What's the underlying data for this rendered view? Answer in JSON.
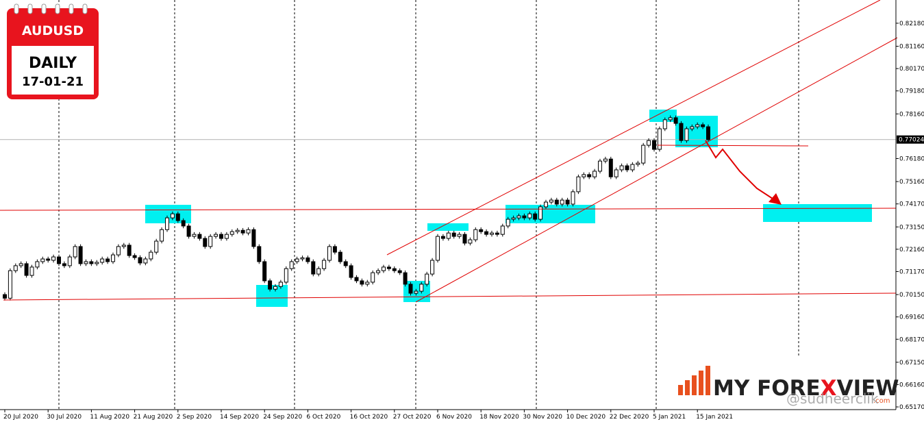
{
  "header": {
    "symbol": "AUDUSD",
    "timeframe": "DAILY",
    "date": "17-01-21"
  },
  "logo": {
    "parts": [
      "MY FORE",
      "X",
      "VIEW"
    ],
    "suffix": ".com"
  },
  "watermark": "@sudheerclik",
  "chart_data": {
    "type": "candlestick",
    "categories": [
      "20 Jul 2020",
      null,
      null,
      null,
      null,
      null,
      null,
      null,
      "30 Jul 2020",
      null,
      null,
      null,
      null,
      null,
      null,
      null,
      "11 Aug 2020",
      null,
      null,
      null,
      null,
      null,
      null,
      null,
      "21 Aug 2020",
      null,
      null,
      null,
      null,
      null,
      null,
      null,
      "2 Sep 2020",
      null,
      null,
      null,
      null,
      null,
      null,
      null,
      "14 Sep 2020",
      null,
      null,
      null,
      null,
      null,
      null,
      null,
      "24 Sep 2020",
      null,
      null,
      null,
      null,
      null,
      null,
      null,
      "6 Oct 2020",
      null,
      null,
      null,
      null,
      null,
      null,
      null,
      "16 Oct 2020",
      null,
      null,
      null,
      null,
      null,
      null,
      null,
      "27 Oct 2020",
      null,
      null,
      null,
      null,
      null,
      null,
      null,
      "6 Nov 2020",
      null,
      null,
      null,
      null,
      null,
      null,
      null,
      "18 Nov 2020",
      null,
      null,
      null,
      null,
      null,
      null,
      null,
      "30 Nov 2020",
      null,
      null,
      null,
      null,
      null,
      null,
      null,
      "10 Dec 2020",
      null,
      null,
      null,
      null,
      null,
      null,
      null,
      "22 Dec 2020",
      null,
      null,
      null,
      null,
      null,
      null,
      null,
      "5 Jan 2021",
      null,
      null,
      null,
      null,
      null,
      null,
      null,
      "15 Jan 2021",
      null,
      null
    ],
    "open": [
      0.7015,
      0.6999,
      0.7121,
      0.7143,
      0.7152,
      0.71,
      0.7137,
      0.7161,
      0.7173,
      0.7167,
      0.7182,
      0.7152,
      0.7143,
      0.7182,
      0.7228,
      0.7152,
      0.7161,
      0.7152,
      0.7158,
      0.7173,
      0.7161,
      0.7191,
      0.7228,
      0.7234,
      0.7188,
      0.7179,
      0.7155,
      0.7173,
      0.7203,
      0.7252,
      0.7303,
      0.7355,
      0.7373,
      0.7343,
      0.7319,
      0.7273,
      0.7282,
      0.7264,
      0.7228,
      0.7273,
      0.7282,
      0.7264,
      0.7282,
      0.7294,
      0.73,
      0.7288,
      0.7303,
      0.7228,
      0.7161,
      0.7076,
      0.7039,
      0.7051,
      0.707,
      0.713,
      0.7161,
      0.7173,
      0.7178,
      0.7161,
      0.7106,
      0.713,
      0.7167,
      0.7228,
      0.7203,
      0.7161,
      0.7143,
      0.7091,
      0.7076,
      0.7061,
      0.707,
      0.7112,
      0.7121,
      0.7137,
      0.713,
      0.7121,
      0.7112,
      0.7061,
      0.7021,
      0.703,
      0.7061,
      0.7106,
      0.7167,
      0.7273,
      0.7264,
      0.7288,
      0.7273,
      0.7282,
      0.7243,
      0.7258,
      0.7303,
      0.7294,
      0.7282,
      0.7288,
      0.7282,
      0.7319,
      0.7349,
      0.7355,
      0.7364,
      0.7355,
      0.7373,
      0.7349,
      0.7404,
      0.7425,
      0.7434,
      0.7416,
      0.7434,
      0.7416,
      0.7471,
      0.7537,
      0.7547,
      0.7537,
      0.7562,
      0.7607,
      0.7616,
      0.7537,
      0.7568,
      0.7586,
      0.7568,
      0.7592,
      0.7598,
      0.7677,
      0.7698,
      0.7659,
      0.775,
      0.779,
      0.7799,
      0.7774,
      0.7698,
      0.775,
      0.7759,
      0.7768,
      0.7759
    ],
    "high": [
      0.7025,
      0.7131,
      0.7153,
      0.7162,
      0.7162,
      0.7147,
      0.7171,
      0.7183,
      0.7183,
      0.7192,
      0.7192,
      0.7162,
      0.7192,
      0.7238,
      0.7238,
      0.7171,
      0.7171,
      0.7168,
      0.7183,
      0.7183,
      0.7201,
      0.7238,
      0.7244,
      0.7244,
      0.7198,
      0.7189,
      0.7183,
      0.7213,
      0.7262,
      0.7313,
      0.7365,
      0.7383,
      0.7383,
      0.7353,
      0.7329,
      0.7292,
      0.7292,
      0.7274,
      0.7283,
      0.7292,
      0.7292,
      0.7292,
      0.7304,
      0.731,
      0.731,
      0.7313,
      0.7313,
      0.7238,
      0.7171,
      0.7086,
      0.7061,
      0.708,
      0.714,
      0.7171,
      0.7183,
      0.7188,
      0.7188,
      0.7171,
      0.714,
      0.7177,
      0.7238,
      0.7238,
      0.7213,
      0.7171,
      0.7153,
      0.7101,
      0.7086,
      0.708,
      0.7122,
      0.7131,
      0.7147,
      0.7147,
      0.714,
      0.7131,
      0.7122,
      0.7071,
      0.704,
      0.7071,
      0.7116,
      0.7177,
      0.7283,
      0.7283,
      0.7298,
      0.7298,
      0.7292,
      0.7292,
      0.7268,
      0.7313,
      0.7313,
      0.7304,
      0.7298,
      0.7298,
      0.7329,
      0.7359,
      0.7365,
      0.7374,
      0.7374,
      0.7383,
      0.7383,
      0.7414,
      0.7435,
      0.7444,
      0.7444,
      0.7444,
      0.7444,
      0.7481,
      0.7547,
      0.7557,
      0.7557,
      0.7572,
      0.7617,
      0.7626,
      0.7626,
      0.7578,
      0.7596,
      0.7596,
      0.7602,
      0.7608,
      0.7687,
      0.7708,
      0.7708,
      0.776,
      0.78,
      0.7809,
      0.7809,
      0.7784,
      0.776,
      0.7769,
      0.7778,
      0.7778,
      0.7769
    ],
    "low": [
      0.6989,
      0.6989,
      0.7111,
      0.7133,
      0.709,
      0.709,
      0.7127,
      0.7151,
      0.7157,
      0.7157,
      0.7142,
      0.7133,
      0.7133,
      0.7172,
      0.7142,
      0.7142,
      0.7142,
      0.7142,
      0.7148,
      0.7151,
      0.7151,
      0.7181,
      0.7218,
      0.7178,
      0.7169,
      0.7145,
      0.7145,
      0.7163,
      0.7193,
      0.7242,
      0.7293,
      0.7345,
      0.7333,
      0.7309,
      0.7263,
      0.7263,
      0.7254,
      0.7218,
      0.7218,
      0.7263,
      0.7254,
      0.7254,
      0.7272,
      0.7284,
      0.7278,
      0.7278,
      0.7218,
      0.7151,
      0.7066,
      0.7029,
      0.7029,
      0.7041,
      0.706,
      0.712,
      0.7151,
      0.7163,
      0.7151,
      0.7096,
      0.7096,
      0.712,
      0.7157,
      0.7193,
      0.7151,
      0.7133,
      0.7081,
      0.7066,
      0.7051,
      0.7051,
      0.706,
      0.7102,
      0.7111,
      0.712,
      0.7111,
      0.7102,
      0.7051,
      0.7011,
      0.7011,
      0.702,
      0.7051,
      0.7096,
      0.7157,
      0.7254,
      0.7254,
      0.7263,
      0.7263,
      0.7233,
      0.7233,
      0.7248,
      0.7284,
      0.7272,
      0.7272,
      0.7272,
      0.7272,
      0.7309,
      0.7339,
      0.7345,
      0.7345,
      0.7345,
      0.7339,
      0.7339,
      0.7394,
      0.7415,
      0.7406,
      0.7406,
      0.7406,
      0.7406,
      0.7461,
      0.7527,
      0.7527,
      0.7527,
      0.7552,
      0.7597,
      0.7527,
      0.7527,
      0.7558,
      0.7558,
      0.7558,
      0.7582,
      0.7588,
      0.7667,
      0.7649,
      0.7649,
      0.774,
      0.778,
      0.7764,
      0.7688,
      0.7688,
      0.774,
      0.7749,
      0.7749,
      0.7692
    ],
    "close": [
      0.6999,
      0.7121,
      0.7143,
      0.7152,
      0.71,
      0.7137,
      0.7161,
      0.7173,
      0.7167,
      0.7182,
      0.7152,
      0.7143,
      0.7182,
      0.7228,
      0.7152,
      0.7161,
      0.7152,
      0.7158,
      0.7173,
      0.7161,
      0.7191,
      0.7228,
      0.7234,
      0.7188,
      0.7179,
      0.7155,
      0.7173,
      0.7203,
      0.7252,
      0.7303,
      0.7355,
      0.7373,
      0.7343,
      0.7319,
      0.7273,
      0.7282,
      0.7264,
      0.7228,
      0.7273,
      0.7282,
      0.7264,
      0.7282,
      0.7294,
      0.73,
      0.7288,
      0.7303,
      0.7228,
      0.7161,
      0.7076,
      0.7039,
      0.7051,
      0.707,
      0.713,
      0.7161,
      0.7173,
      0.7178,
      0.7161,
      0.7106,
      0.713,
      0.7167,
      0.7228,
      0.7203,
      0.7161,
      0.7143,
      0.7091,
      0.7076,
      0.7061,
      0.707,
      0.7112,
      0.7121,
      0.7137,
      0.713,
      0.7121,
      0.7112,
      0.7061,
      0.7021,
      0.703,
      0.7061,
      0.7106,
      0.7167,
      0.7273,
      0.7264,
      0.7288,
      0.7273,
      0.7282,
      0.7243,
      0.7258,
      0.7303,
      0.7294,
      0.7282,
      0.7288,
      0.7282,
      0.7319,
      0.7349,
      0.7355,
      0.7364,
      0.7355,
      0.7373,
      0.7349,
      0.7404,
      0.7425,
      0.7434,
      0.7416,
      0.7434,
      0.7416,
      0.7471,
      0.7537,
      0.7547,
      0.7537,
      0.7562,
      0.7607,
      0.7616,
      0.7537,
      0.7568,
      0.7586,
      0.7568,
      0.7592,
      0.7598,
      0.7677,
      0.7698,
      0.7659,
      0.775,
      0.779,
      0.7799,
      0.7774,
      0.7698,
      0.775,
      0.7759,
      0.7768,
      0.7759,
      0.7702
    ],
    "current_price": 0.77024,
    "ylim": [
      0.6505,
      0.8321
    ],
    "yticks": [
      {
        "value": 0.8218,
        "label": "0.82180"
      },
      {
        "value": 0.8116,
        "label": "0.81160"
      },
      {
        "value": 0.8017,
        "label": "0.80170"
      },
      {
        "value": 0.7918,
        "label": "0.79180"
      },
      {
        "value": 0.7816,
        "label": "0.78160"
      },
      {
        "value": 0.7618,
        "label": "0.76180"
      },
      {
        "value": 0.7516,
        "label": "0.75160"
      },
      {
        "value": 0.7417,
        "label": "0.74170"
      },
      {
        "value": 0.7315,
        "label": "0.73150"
      },
      {
        "value": 0.7216,
        "label": "0.72160"
      },
      {
        "value": 0.7117,
        "label": "0.71170"
      },
      {
        "value": 0.7015,
        "label": "0.70150"
      },
      {
        "value": 0.6916,
        "label": "0.69160"
      },
      {
        "value": 0.6817,
        "label": "0.68170"
      },
      {
        "value": 0.6715,
        "label": "0.67150"
      },
      {
        "value": 0.6616,
        "label": "0.66160"
      },
      {
        "value": 0.6517,
        "label": "0.65170"
      }
    ]
  }
}
